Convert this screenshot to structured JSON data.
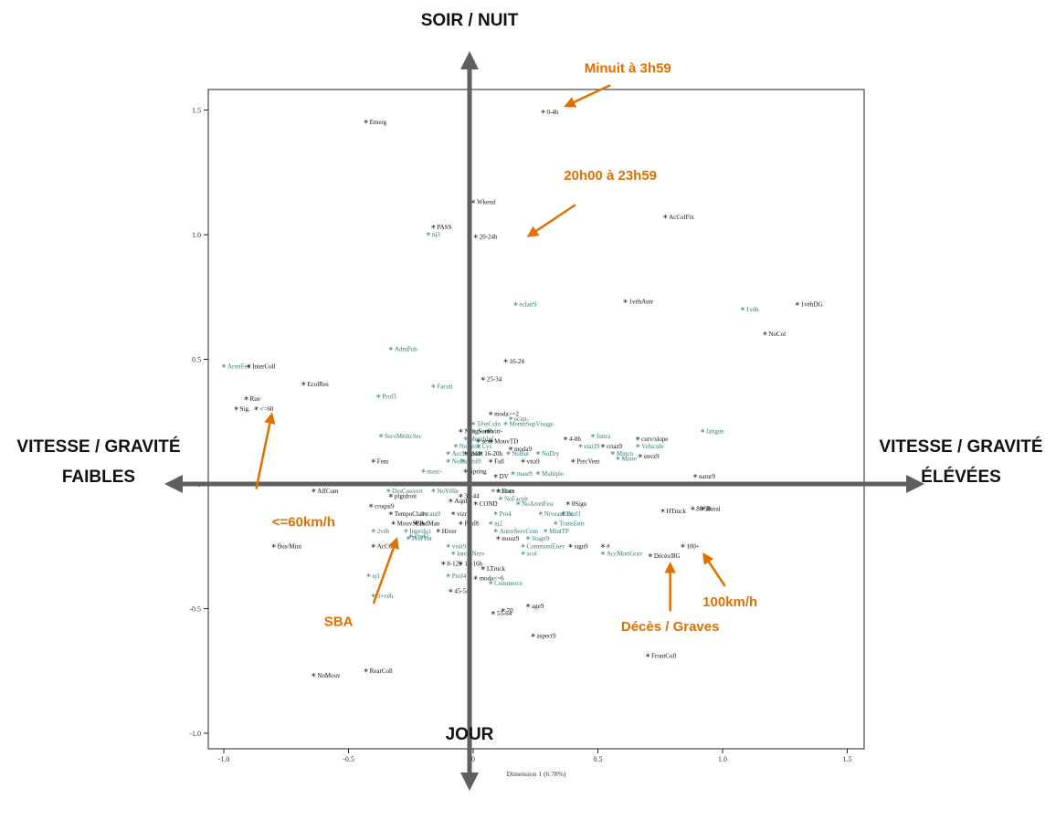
{
  "colors": {
    "black": "#111111",
    "teal": "#2a7a74",
    "orange": "#e07000",
    "axis": "#5f5f5f"
  },
  "labels": {
    "top": "SOIR / NUIT",
    "bottom": "JOUR",
    "left_1": "VITESSE / GRAVITÉ",
    "left_2": "FAIBLES",
    "right_1": "VITESSE / GRAVITÉ",
    "right_2": "ÉLÉVÉES"
  },
  "annotations": [
    {
      "text": "Minuit à 3h59",
      "tx": 0.62,
      "ty": 1.65,
      "ax": 0.55,
      "ay": 1.6,
      "bx": 0.38,
      "by": 1.52
    },
    {
      "text": "20h00 à 23h59",
      "tx": 0.55,
      "ty": 1.22,
      "ax": 0.41,
      "ay": 1.12,
      "bx": 0.23,
      "by": 1.0
    },
    {
      "text": "<=60km/h",
      "tx": -0.68,
      "ty": -0.17,
      "ax": -0.87,
      "ay": -0.02,
      "bx": -0.81,
      "by": 0.27
    },
    {
      "text": "SBA",
      "tx": -0.54,
      "ty": -0.57,
      "ax": -0.4,
      "ay": -0.48,
      "bx": -0.31,
      "by": -0.23
    },
    {
      "text": "Décès / Graves",
      "tx": 0.79,
      "ty": -0.59,
      "ax": 0.79,
      "ay": -0.51,
      "bx": 0.79,
      "by": -0.33
    },
    {
      "text": "100km/h",
      "tx": 1.03,
      "ty": -0.49,
      "ax": 1.01,
      "ay": -0.41,
      "bx": 0.93,
      "by": -0.29
    }
  ],
  "chart_data": {
    "type": "scatter",
    "xlabel": "Dimension 1 (6.78%)",
    "ylabel": "",
    "xlim": [
      -1.1,
      1.6
    ],
    "ylim": [
      -1.1,
      1.6
    ],
    "xticks": [
      -1.0,
      -0.5,
      0,
      0.5,
      1.0,
      1.5
    ],
    "yticks": [
      -1.0,
      -0.5,
      0,
      0.5,
      1.0,
      1.5
    ],
    "points": [
      {
        "x": 0.28,
        "y": 1.49,
        "label": "0-4h",
        "g": "b"
      },
      {
        "x": -0.43,
        "y": 1.45,
        "label": "Emerg",
        "g": "b"
      },
      {
        "x": 0.0,
        "y": 1.13,
        "label": "Wkend",
        "g": "b"
      },
      {
        "x": 0.77,
        "y": 1.07,
        "label": "AcColFix",
        "g": "b"
      },
      {
        "x": -0.16,
        "y": 1.03,
        "label": "PASS",
        "g": "b"
      },
      {
        "x": -0.18,
        "y": 1.0,
        "label": "nj3",
        "g": "t"
      },
      {
        "x": 0.01,
        "y": 0.99,
        "label": "20-24h",
        "g": "b"
      },
      {
        "x": 0.61,
        "y": 0.73,
        "label": "1véhAutr",
        "g": "b"
      },
      {
        "x": 1.3,
        "y": 0.72,
        "label": "1véhDG",
        "g": "b"
      },
      {
        "x": 0.17,
        "y": 0.72,
        "label": "eclair9",
        "g": "t"
      },
      {
        "x": 1.08,
        "y": 0.7,
        "label": "1véh",
        "g": "t"
      },
      {
        "x": 1.17,
        "y": 0.6,
        "label": "NoCol",
        "g": "b"
      },
      {
        "x": -0.33,
        "y": 0.54,
        "label": "AdmPub",
        "g": "t"
      },
      {
        "x": 0.13,
        "y": 0.49,
        "label": "16-24",
        "g": "b"
      },
      {
        "x": -1.0,
        "y": 0.47,
        "label": "ArretFeu",
        "g": "t"
      },
      {
        "x": -0.9,
        "y": 0.47,
        "label": "InterColl",
        "g": "b"
      },
      {
        "x": 0.04,
        "y": 0.42,
        "label": "25-34",
        "g": "b"
      },
      {
        "x": -0.68,
        "y": 0.4,
        "label": "EcolRes",
        "g": "b"
      },
      {
        "x": -0.16,
        "y": 0.39,
        "label": "Facult",
        "g": "t"
      },
      {
        "x": -0.38,
        "y": 0.35,
        "label": "Prof3",
        "g": "t"
      },
      {
        "x": -0.91,
        "y": 0.34,
        "label": "Rue",
        "g": "b"
      },
      {
        "x": -0.95,
        "y": 0.3,
        "label": "Sig.",
        "g": "b"
      },
      {
        "x": -0.87,
        "y": 0.3,
        "label": "<=60",
        "g": "b"
      },
      {
        "x": 0.07,
        "y": 0.28,
        "label": "moda>=2",
        "g": "b"
      },
      {
        "x": 0.15,
        "y": 0.26,
        "label": "ecint-",
        "g": "t"
      },
      {
        "x": 0.0,
        "y": 0.24,
        "label": "TêteCrân",
        "g": "t"
      },
      {
        "x": 0.13,
        "y": 0.24,
        "label": "MembSupVisage",
        "g": "t"
      },
      {
        "x": -0.05,
        "y": 0.21,
        "label": "NuagSomb",
        "g": "b"
      },
      {
        "x": 0.06,
        "y": 0.21,
        "label": "vitr-",
        "g": "b"
      },
      {
        "x": 0.0,
        "y": 0.21,
        "label": "Autob",
        "g": "t"
      },
      {
        "x": 0.92,
        "y": 0.21,
        "label": "fatigue",
        "g": "t"
      },
      {
        "x": -0.37,
        "y": 0.19,
        "label": "ServMédicSec",
        "g": "t"
      },
      {
        "x": -0.03,
        "y": 0.18,
        "label": "MembInf",
        "g": "t"
      },
      {
        "x": 0.02,
        "y": 0.17,
        "label": "sexe",
        "g": "b"
      },
      {
        "x": 0.07,
        "y": 0.17,
        "label": "MouvTD",
        "g": "b"
      },
      {
        "x": 0.37,
        "y": 0.18,
        "label": "4-8h",
        "g": "b"
      },
      {
        "x": 0.48,
        "y": 0.19,
        "label": "Inttra",
        "g": "t"
      },
      {
        "x": 0.66,
        "y": 0.18,
        "label": "curv/slope",
        "g": "b"
      },
      {
        "x": -0.07,
        "y": 0.15,
        "label": "NoIntox",
        "g": "t"
      },
      {
        "x": 0.02,
        "y": 0.15,
        "label": "Cyc",
        "g": "t"
      },
      {
        "x": 0.15,
        "y": 0.14,
        "label": "moda9",
        "g": "b"
      },
      {
        "x": 0.43,
        "y": 0.15,
        "label": "etat19",
        "g": "t"
      },
      {
        "x": 0.52,
        "y": 0.15,
        "label": "crtaz9",
        "g": "b"
      },
      {
        "x": 0.66,
        "y": 0.15,
        "label": "Vehicule",
        "g": "t"
      },
      {
        "x": -0.1,
        "y": 0.12,
        "label": "AccLégMin",
        "g": "t"
      },
      {
        "x": -0.03,
        "y": 0.12,
        "label": "insd",
        "g": "b"
      },
      {
        "x": 0.03,
        "y": 0.12,
        "label": "16-20h",
        "g": "b"
      },
      {
        "x": 0.14,
        "y": 0.12,
        "label": "NoBut",
        "g": "t"
      },
      {
        "x": 0.26,
        "y": 0.12,
        "label": "NoDry",
        "g": "t"
      },
      {
        "x": 0.56,
        "y": 0.12,
        "label": "Mincn",
        "g": "t"
      },
      {
        "x": 0.58,
        "y": 0.1,
        "label": "Mixte",
        "g": "t"
      },
      {
        "x": 0.67,
        "y": 0.11,
        "label": "envz9",
        "g": "b"
      },
      {
        "x": -0.4,
        "y": 0.09,
        "label": "Fem",
        "g": "b"
      },
      {
        "x": -0.1,
        "y": 0.09,
        "label": "NoBall",
        "g": "t"
      },
      {
        "x": -0.04,
        "y": 0.09,
        "label": "Prof8",
        "g": "t"
      },
      {
        "x": 0.07,
        "y": 0.09,
        "label": "Fall",
        "g": "b"
      },
      {
        "x": 0.2,
        "y": 0.09,
        "label": "vita9",
        "g": "b"
      },
      {
        "x": 0.4,
        "y": 0.09,
        "label": "PrecVent",
        "g": "b"
      },
      {
        "x": -0.03,
        "y": 0.05,
        "label": "Spring",
        "g": "b"
      },
      {
        "x": -0.2,
        "y": 0.05,
        "label": "masc-",
        "g": "t"
      },
      {
        "x": 0.16,
        "y": 0.04,
        "label": "masr9",
        "g": "t"
      },
      {
        "x": 0.26,
        "y": 0.04,
        "label": "Multiple",
        "g": "t"
      },
      {
        "x": 0.09,
        "y": 0.03,
        "label": "DV",
        "g": "b"
      },
      {
        "x": 0.89,
        "y": 0.03,
        "label": "natur9",
        "g": "b"
      },
      {
        "x": -0.64,
        "y": -0.03,
        "label": "AffCom",
        "g": "b"
      },
      {
        "x": -0.34,
        "y": -0.03,
        "label": "DesCouvert",
        "g": "t"
      },
      {
        "x": -0.16,
        "y": -0.03,
        "label": "NoVélle",
        "g": "t"
      },
      {
        "x": 0.08,
        "y": -0.03,
        "label": "eclint+",
        "g": "t"
      },
      {
        "x": 0.1,
        "y": -0.03,
        "label": "Hom",
        "g": "b"
      },
      {
        "x": -0.33,
        "y": -0.05,
        "label": "plgtdroit",
        "g": "b"
      },
      {
        "x": -0.05,
        "y": -0.05,
        "label": "35-44",
        "g": "b"
      },
      {
        "x": 0.11,
        "y": -0.06,
        "label": "NoFacult",
        "g": "t"
      },
      {
        "x": -0.41,
        "y": -0.09,
        "label": "croqui9",
        "g": "b"
      },
      {
        "x": -0.09,
        "y": -0.07,
        "label": "Aqnl",
        "g": "b"
      },
      {
        "x": 0.01,
        "y": -0.08,
        "label": "COND",
        "g": "b"
      },
      {
        "x": 0.18,
        "y": -0.08,
        "label": "NoArretFeu",
        "g": "t"
      },
      {
        "x": 0.38,
        "y": -0.08,
        "label": "0Sign",
        "g": "b"
      },
      {
        "x": 0.76,
        "y": -0.11,
        "label": "HTruck",
        "g": "b"
      },
      {
        "x": 0.88,
        "y": -0.1,
        "label": "80/90",
        "g": "b"
      },
      {
        "x": 0.92,
        "y": -0.1,
        "label": "Rural",
        "g": "b"
      },
      {
        "x": -0.33,
        "y": -0.12,
        "label": "TempoClaire",
        "g": "b"
      },
      {
        "x": -0.2,
        "y": -0.12,
        "label": "cata9",
        "g": "t"
      },
      {
        "x": -0.08,
        "y": -0.12,
        "label": "vizr",
        "g": "b"
      },
      {
        "x": 0.09,
        "y": -0.12,
        "label": "Pro4",
        "g": "t"
      },
      {
        "x": 0.27,
        "y": -0.12,
        "label": "NiveauEtat",
        "g": "t"
      },
      {
        "x": 0.36,
        "y": -0.12,
        "label": "Prof1",
        "g": "t"
      },
      {
        "x": -0.32,
        "y": -0.16,
        "label": "MouvSBA",
        "g": "b"
      },
      {
        "x": -0.23,
        "y": -0.16,
        "label": "IndMan",
        "g": "b"
      },
      {
        "x": -0.05,
        "y": -0.16,
        "label": "Prof8",
        "g": "b"
      },
      {
        "x": 0.07,
        "y": -0.16,
        "label": "nj2",
        "g": "t"
      },
      {
        "x": 0.33,
        "y": -0.16,
        "label": "TransEntr",
        "g": "t"
      },
      {
        "x": -0.4,
        "y": -0.19,
        "label": "2véh",
        "g": "t"
      },
      {
        "x": -0.27,
        "y": -0.19,
        "label": "Interdict",
        "g": "t"
      },
      {
        "x": -0.14,
        "y": -0.19,
        "label": "Hiver",
        "g": "b"
      },
      {
        "x": 0.09,
        "y": -0.19,
        "label": "AutreServCom",
        "g": "t"
      },
      {
        "x": 0.29,
        "y": -0.19,
        "label": "MintTP",
        "g": "t"
      },
      {
        "x": -0.26,
        "y": -0.22,
        "label": "ProfTnt",
        "g": "t"
      },
      {
        "x": -0.25,
        "y": -0.21,
        "label": "Prof2",
        "g": "t"
      },
      {
        "x": 0.1,
        "y": -0.22,
        "label": "mouz9",
        "g": "b"
      },
      {
        "x": 0.22,
        "y": -0.22,
        "label": "Stage9",
        "g": "t"
      },
      {
        "x": -0.8,
        "y": -0.25,
        "label": "Bus/Mini",
        "g": "b"
      },
      {
        "x": -0.4,
        "y": -0.25,
        "label": "AcCol",
        "g": "b"
      },
      {
        "x": -0.1,
        "y": -0.25,
        "label": "visit9",
        "g": "t"
      },
      {
        "x": 0.2,
        "y": -0.25,
        "label": "CommuniEner",
        "g": "t"
      },
      {
        "x": 0.39,
        "y": -0.25,
        "label": "sign9",
        "g": "b"
      },
      {
        "x": 0.52,
        "y": -0.25,
        "label": "#",
        "g": "b"
      },
      {
        "x": 0.84,
        "y": -0.25,
        "label": "100+",
        "g": "b"
      },
      {
        "x": -0.08,
        "y": -0.28,
        "label": "IntextNerv",
        "g": "t"
      },
      {
        "x": 0.2,
        "y": -0.28,
        "label": "scol",
        "g": "t"
      },
      {
        "x": 0.52,
        "y": -0.28,
        "label": "AccMortGrav",
        "g": "t"
      },
      {
        "x": 0.71,
        "y": -0.29,
        "label": "Décès/BG",
        "g": "b"
      },
      {
        "x": -0.12,
        "y": -0.32,
        "label": "8-12h",
        "g": "b"
      },
      {
        "x": -0.05,
        "y": -0.32,
        "label": "12-16h",
        "g": "b"
      },
      {
        "x": 0.04,
        "y": -0.34,
        "label": "LTruck",
        "g": "b"
      },
      {
        "x": -0.42,
        "y": -0.37,
        "label": "nj1",
        "g": "t"
      },
      {
        "x": -0.1,
        "y": -0.37,
        "label": "Prof4",
        "g": "t"
      },
      {
        "x": 0.01,
        "y": -0.38,
        "label": "moda<=6",
        "g": "b"
      },
      {
        "x": 0.07,
        "y": -0.4,
        "label": "Commerce",
        "g": "t"
      },
      {
        "x": -0.4,
        "y": -0.45,
        "label": "3+véh",
        "g": "t"
      },
      {
        "x": -0.09,
        "y": -0.43,
        "label": "45-54",
        "g": "b"
      },
      {
        "x": 0.08,
        "y": -0.52,
        "label": "55-64",
        "g": "b"
      },
      {
        "x": 0.12,
        "y": -0.51,
        "label": "70",
        "g": "b"
      },
      {
        "x": 0.22,
        "y": -0.49,
        "label": "age9",
        "g": "b"
      },
      {
        "x": 0.24,
        "y": -0.61,
        "label": "aspect9",
        "g": "b"
      },
      {
        "x": 0.7,
        "y": -0.69,
        "label": "FrontColl",
        "g": "b"
      },
      {
        "x": -0.43,
        "y": -0.75,
        "label": "RearColl",
        "g": "b"
      },
      {
        "x": -0.64,
        "y": -0.77,
        "label": "NoMouv",
        "g": "b"
      }
    ]
  }
}
